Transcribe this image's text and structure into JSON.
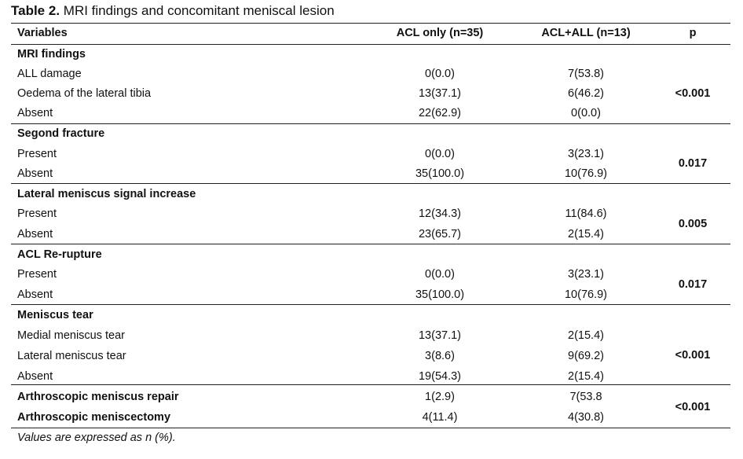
{
  "title": {
    "label": "Table 2.",
    "text": "MRI findings and concomitant meniscal lesion"
  },
  "header": {
    "variables": "Variables",
    "acl_only": "ACL only (n=35)",
    "acl_all": "ACL+ALL (n=13)",
    "p": "p"
  },
  "sections": [
    {
      "heading": "MRI findings",
      "p": "<0.001",
      "rows": [
        {
          "label": "ALL damage",
          "acl_only": "0(0.0)",
          "acl_all": "7(53.8)"
        },
        {
          "label": "Oedema of the lateral tibia",
          "acl_only": "13(37.1)",
          "acl_all": "6(46.2)"
        },
        {
          "label": "Absent",
          "acl_only": "22(62.9)",
          "acl_all": "0(0.0)"
        }
      ]
    },
    {
      "heading": "Segond fracture",
      "p": "0.017",
      "rows": [
        {
          "label": "Present",
          "acl_only": "0(0.0)",
          "acl_all": "3(23.1)"
        },
        {
          "label": "Absent",
          "acl_only": "35(100.0)",
          "acl_all": "10(76.9)"
        }
      ]
    },
    {
      "heading": "Lateral meniscus signal increase",
      "p": "0.005",
      "rows": [
        {
          "label": "Present",
          "acl_only": "12(34.3)",
          "acl_all": "11(84.6)"
        },
        {
          "label": "Absent",
          "acl_only": "23(65.7)",
          "acl_all": "2(15.4)"
        }
      ]
    },
    {
      "heading": "ACL Re-rupture",
      "p": "0.017",
      "rows": [
        {
          "label": "Present",
          "acl_only": "0(0.0)",
          "acl_all": "3(23.1)"
        },
        {
          "label": "Absent",
          "acl_only": "35(100.0)",
          "acl_all": "10(76.9)"
        }
      ]
    },
    {
      "heading": "Meniscus tear",
      "p": "<0.001",
      "rows": [
        {
          "label": "Medial meniscus tear",
          "acl_only": "13(37.1)",
          "acl_all": "2(15.4)"
        },
        {
          "label": "Lateral meniscus tear",
          "acl_only": "3(8.6)",
          "acl_all": "9(69.2)"
        },
        {
          "label": "Absent",
          "acl_only": "19(54.3)",
          "acl_all": "2(15.4)"
        }
      ]
    }
  ],
  "arthroscopic": {
    "p": "<0.001",
    "rows": [
      {
        "label": "Arthroscopic meniscus repair",
        "acl_only": "1(2.9)",
        "acl_all": "7(53.8"
      },
      {
        "label": "Arthroscopic meniscectomy",
        "acl_only": "4(11.4)",
        "acl_all": "4(30.8)"
      }
    ]
  },
  "footnote": "Values are expressed as n (%)."
}
